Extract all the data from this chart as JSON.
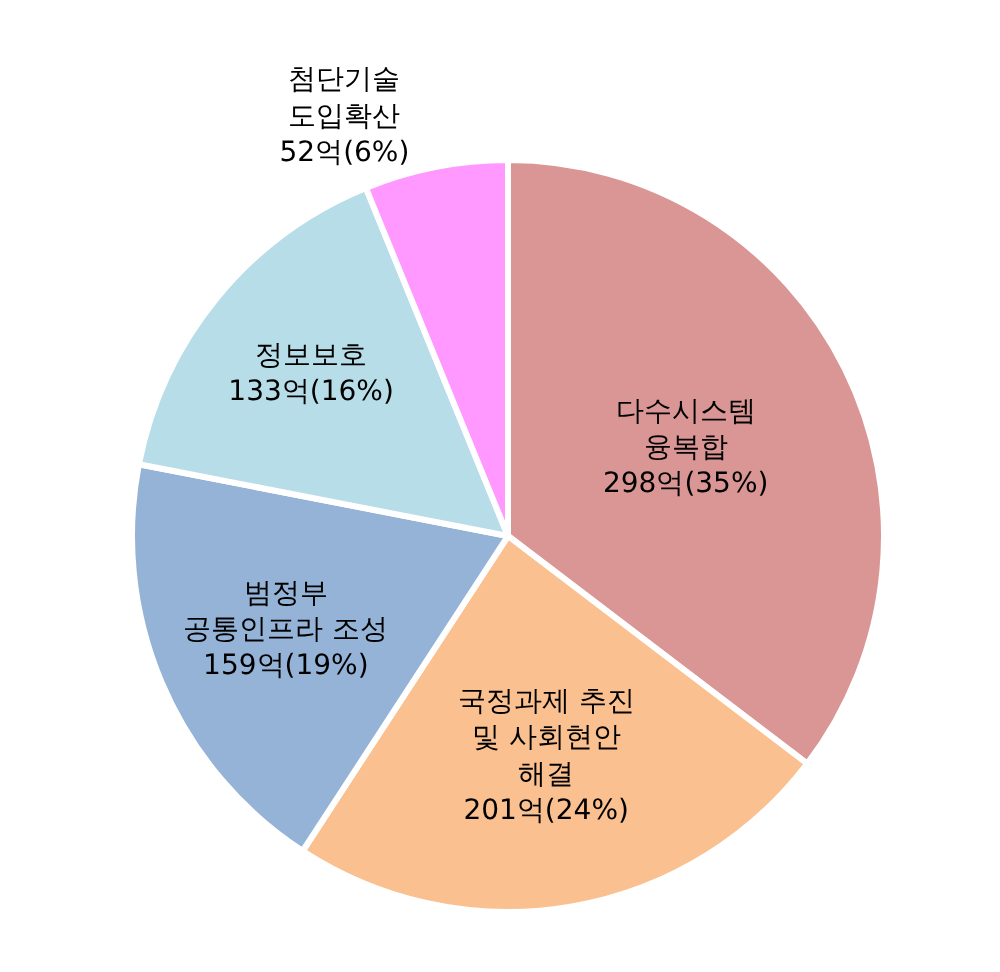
{
  "chart_data": {
    "type": "pie",
    "categories": [
      "다수시스템\n융복합",
      "국정과제 추진\n및 사회현안\n해결",
      "범정부\n공통인프라 조성",
      "정보보호",
      "첨단기술\n도입확산"
    ],
    "values": [
      298,
      201,
      159,
      133,
      52
    ],
    "value_labels": [
      "298억(35%)",
      "201억(24%)",
      "159억(19%)",
      "133억(16%)",
      "52억(6%)"
    ],
    "colors": [
      "#d99694",
      "#fac090",
      "#95b3d7",
      "#b7dee8",
      "#ff99ff"
    ],
    "legend": false
  }
}
